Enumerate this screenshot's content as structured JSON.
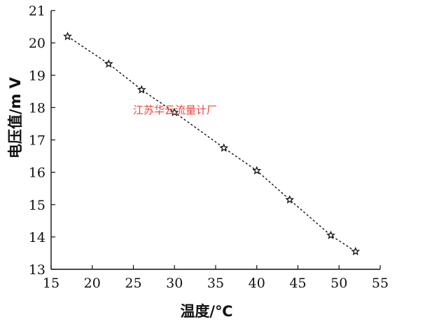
{
  "chart_data": {
    "type": "line",
    "title": "",
    "xlabel": "温度/℃",
    "ylabel": "电压值/m V",
    "xlim": [
      15,
      55
    ],
    "ylim": [
      13,
      21
    ],
    "xticks": [
      15,
      20,
      25,
      30,
      35,
      40,
      45,
      50,
      55
    ],
    "yticks": [
      13,
      14,
      15,
      16,
      17,
      18,
      19,
      20,
      21
    ],
    "grid": false,
    "series": [
      {
        "x": [
          17,
          22,
          26,
          30,
          36,
          40,
          44,
          49,
          52
        ],
        "y": [
          20.2,
          19.35,
          18.55,
          17.85,
          16.75,
          16.05,
          15.15,
          14.05,
          13.55
        ],
        "line_style": "dashed",
        "marker": "star",
        "color": "#111111"
      }
    ],
    "annotation": "江苏华云流量计厂",
    "annotation_color": "#e8453c"
  }
}
